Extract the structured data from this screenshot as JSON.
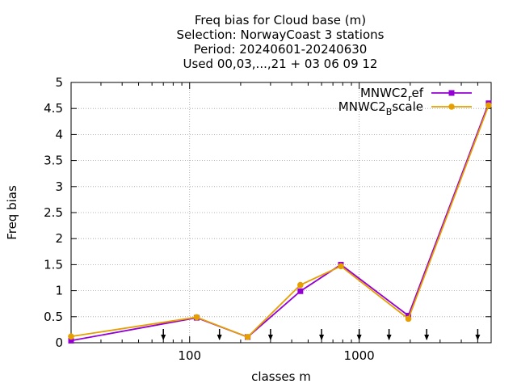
{
  "chart_data": {
    "type": "line",
    "title_lines": [
      "Freq bias  for Cloud base (m)",
      "Selection: NorwayCoast      3 stations",
      "Period: 20240601-20240630",
      "Used 00,03,...,21 + 03 06 09 12"
    ],
    "xlabel": "classes m",
    "ylabel": "Freq bias",
    "x_scale": "log",
    "xlim": [
      20,
      6000
    ],
    "ylim": [
      0,
      5
    ],
    "x_ticks": [
      100,
      1000
    ],
    "x_tick_labels": [
      "100",
      "1000"
    ],
    "y_ticks": [
      0,
      0.5,
      1,
      1.5,
      2,
      2.5,
      3,
      3.5,
      4,
      4.5,
      5
    ],
    "y_tick_labels": [
      "0",
      "0.5",
      "1",
      "1.5",
      "2",
      "2.5",
      "3",
      "3.5",
      "4",
      "4.5",
      "5"
    ],
    "grid": true,
    "legend_position": "top-right",
    "class_limit_arrows": [
      70,
      150,
      300,
      600,
      1000,
      1500,
      2500,
      5000
    ],
    "series": [
      {
        "name_main": "MNWC2",
        "name_sub": "r",
        "name_tail": "ef",
        "color": "#9400d3",
        "marker": "square",
        "x": [
          20,
          110,
          220,
          450,
          780,
          1950,
          5800
        ],
        "y": [
          0.04,
          0.48,
          0.11,
          0.99,
          1.5,
          0.52,
          4.6
        ]
      },
      {
        "name_main": "MNWC2",
        "name_sub": "B",
        "name_tail": "scale",
        "color": "#e69f00",
        "marker": "circle",
        "x": [
          20,
          110,
          220,
          450,
          780,
          1950,
          5800
        ],
        "y": [
          0.12,
          0.49,
          0.11,
          1.11,
          1.47,
          0.46,
          4.56
        ]
      }
    ]
  }
}
